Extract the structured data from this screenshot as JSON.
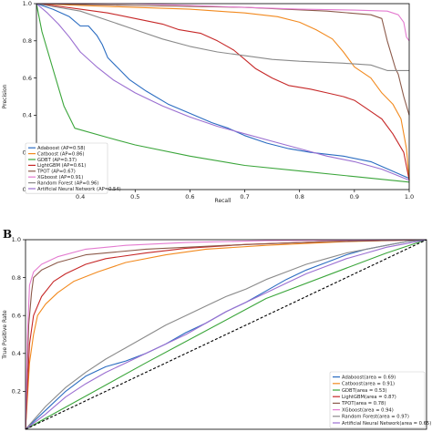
{
  "panel_letter_b": "B",
  "chart_data": [
    {
      "type": "line",
      "title": "",
      "xlabel": "Recall",
      "ylabel": "Precision",
      "xlim": [
        0.32,
        1.0
      ],
      "ylim": [
        0.0,
        1.0
      ],
      "xticks": [
        "0.4",
        "0.5",
        "0.6",
        "0.7",
        "0.8",
        "0.9",
        "1.0"
      ],
      "yticks": [
        "0.0",
        "0.2",
        "0.4",
        "0.6",
        "0.8",
        "1.0"
      ],
      "grid": false,
      "legend_position": "lower-left",
      "series": [
        {
          "name": "Adaboost (AP=0.58)",
          "color": "#2a6cc1",
          "points": [
            [
              0.32,
              1.0
            ],
            [
              0.35,
              0.97
            ],
            [
              0.38,
              0.93
            ],
            [
              0.4,
              0.88
            ],
            [
              0.415,
              0.88
            ],
            [
              0.43,
              0.83
            ],
            [
              0.44,
              0.78
            ],
            [
              0.45,
              0.71
            ],
            [
              0.47,
              0.65
            ],
            [
              0.49,
              0.59
            ],
            [
              0.52,
              0.53
            ],
            [
              0.56,
              0.46
            ],
            [
              0.6,
              0.41
            ],
            [
              0.64,
              0.36
            ],
            [
              0.67,
              0.33
            ],
            [
              0.7,
              0.29
            ],
            [
              0.74,
              0.25
            ],
            [
              0.78,
              0.22
            ],
            [
              0.82,
              0.2
            ],
            [
              0.88,
              0.18
            ],
            [
              0.93,
              0.15
            ],
            [
              1.0,
              0.06
            ]
          ]
        },
        {
          "name": "Catboost (AP=0.86)",
          "color": "#f28a1f",
          "points": [
            [
              0.32,
              1.0
            ],
            [
              0.4,
              0.99
            ],
            [
              0.5,
              0.98
            ],
            [
              0.6,
              0.97
            ],
            [
              0.7,
              0.95
            ],
            [
              0.76,
              0.93
            ],
            [
              0.8,
              0.9
            ],
            [
              0.83,
              0.86
            ],
            [
              0.86,
              0.81
            ],
            [
              0.88,
              0.74
            ],
            [
              0.9,
              0.66
            ],
            [
              0.93,
              0.6
            ],
            [
              0.95,
              0.52
            ],
            [
              0.97,
              0.46
            ],
            [
              0.985,
              0.38
            ],
            [
              0.995,
              0.22
            ],
            [
              1.0,
              0.05
            ]
          ]
        },
        {
          "name": "GDBT (AP=0.37)",
          "color": "#3aa53a",
          "points": [
            [
              0.32,
              1.0
            ],
            [
              0.33,
              0.85
            ],
            [
              0.35,
              0.65
            ],
            [
              0.37,
              0.45
            ],
            [
              0.39,
              0.33
            ],
            [
              0.45,
              0.28
            ],
            [
              0.5,
              0.24
            ],
            [
              0.6,
              0.18
            ],
            [
              0.7,
              0.13
            ],
            [
              0.8,
              0.1
            ],
            [
              0.9,
              0.07
            ],
            [
              1.0,
              0.04
            ]
          ]
        },
        {
          "name": "LightGBM (AP=0.61)",
          "color": "#c62828",
          "points": [
            [
              0.32,
              1.0
            ],
            [
              0.35,
              0.99
            ],
            [
              0.4,
              0.97
            ],
            [
              0.45,
              0.95
            ],
            [
              0.5,
              0.92
            ],
            [
              0.55,
              0.89
            ],
            [
              0.58,
              0.86
            ],
            [
              0.62,
              0.84
            ],
            [
              0.65,
              0.8
            ],
            [
              0.68,
              0.75
            ],
            [
              0.7,
              0.7
            ],
            [
              0.72,
              0.65
            ],
            [
              0.75,
              0.6
            ],
            [
              0.78,
              0.56
            ],
            [
              0.82,
              0.54
            ],
            [
              0.85,
              0.52
            ],
            [
              0.88,
              0.5
            ],
            [
              0.9,
              0.48
            ],
            [
              0.92,
              0.44
            ],
            [
              0.95,
              0.38
            ],
            [
              0.97,
              0.3
            ],
            [
              0.99,
              0.2
            ],
            [
              1.0,
              0.05
            ]
          ]
        },
        {
          "name": "TPOT (AP=0.67)",
          "color": "#8c5a4a",
          "points": [
            [
              0.32,
              1.0
            ],
            [
              0.5,
              0.99
            ],
            [
              0.7,
              0.98
            ],
            [
              0.85,
              0.96
            ],
            [
              0.93,
              0.94
            ],
            [
              0.95,
              0.92
            ],
            [
              0.96,
              0.8
            ],
            [
              0.975,
              0.65
            ],
            [
              0.98,
              0.62
            ],
            [
              0.99,
              0.5
            ],
            [
              1.0,
              0.4
            ]
          ]
        },
        {
          "name": "XGboost (AP=0.91)",
          "color": "#e47bd0",
          "points": [
            [
              0.32,
              1.0
            ],
            [
              0.5,
              1.0
            ],
            [
              0.6,
              0.99
            ],
            [
              0.7,
              0.98
            ],
            [
              0.8,
              0.97
            ],
            [
              0.9,
              0.965
            ],
            [
              0.96,
              0.96
            ],
            [
              0.98,
              0.94
            ],
            [
              0.99,
              0.9
            ],
            [
              0.995,
              0.82
            ],
            [
              1.0,
              0.8
            ]
          ]
        },
        {
          "name": "Random Forest (AP=0.96)",
          "color": "#8a8a8a",
          "points": [
            [
              0.32,
              1.0
            ],
            [
              0.4,
              0.96
            ],
            [
              0.45,
              0.91
            ],
            [
              0.5,
              0.86
            ],
            [
              0.55,
              0.81
            ],
            [
              0.6,
              0.77
            ],
            [
              0.65,
              0.74
            ],
            [
              0.7,
              0.72
            ],
            [
              0.75,
              0.7
            ],
            [
              0.8,
              0.69
            ],
            [
              0.88,
              0.68
            ],
            [
              0.93,
              0.67
            ],
            [
              0.96,
              0.64
            ],
            [
              1.0,
              0.64
            ]
          ]
        },
        {
          "name": "Artificial Neural Network (AP=0.54)",
          "color": "#9b6fd1",
          "points": [
            [
              0.32,
              1.0
            ],
            [
              0.34,
              0.95
            ],
            [
              0.36,
              0.89
            ],
            [
              0.38,
              0.82
            ],
            [
              0.4,
              0.74
            ],
            [
              0.43,
              0.66
            ],
            [
              0.46,
              0.59
            ],
            [
              0.5,
              0.52
            ],
            [
              0.55,
              0.45
            ],
            [
              0.6,
              0.39
            ],
            [
              0.65,
              0.34
            ],
            [
              0.7,
              0.3
            ],
            [
              0.75,
              0.26
            ],
            [
              0.8,
              0.22
            ],
            [
              0.85,
              0.18
            ],
            [
              0.9,
              0.15
            ],
            [
              0.95,
              0.11
            ],
            [
              1.0,
              0.05
            ]
          ]
        }
      ]
    },
    {
      "type": "line",
      "title": "",
      "xlabel": "",
      "ylabel": "True Positive Rate",
      "xlim": [
        0.0,
        1.0
      ],
      "ylim": [
        0.0,
        1.0
      ],
      "yticks": [
        "0.2",
        "0.4",
        "0.6",
        "0.8",
        "1.0"
      ],
      "grid": false,
      "legend_position": "lower-right",
      "series": [
        {
          "name": "Adaboost(area = 0.69)",
          "color": "#2a6cc1",
          "points": [
            [
              0,
              0
            ],
            [
              0.05,
              0.1
            ],
            [
              0.1,
              0.2
            ],
            [
              0.15,
              0.28
            ],
            [
              0.2,
              0.33
            ],
            [
              0.25,
              0.36
            ],
            [
              0.3,
              0.4
            ],
            [
              0.35,
              0.45
            ],
            [
              0.4,
              0.51
            ],
            [
              0.45,
              0.56
            ],
            [
              0.5,
              0.62
            ],
            [
              0.55,
              0.67
            ],
            [
              0.6,
              0.73
            ],
            [
              0.65,
              0.79
            ],
            [
              0.7,
              0.84
            ],
            [
              0.75,
              0.88
            ],
            [
              0.8,
              0.92
            ],
            [
              0.85,
              0.95
            ],
            [
              0.9,
              0.97
            ],
            [
              0.95,
              0.99
            ],
            [
              1.0,
              1.0
            ]
          ]
        },
        {
          "name": "Catboost(area = 0.91)",
          "color": "#f28a1f",
          "points": [
            [
              0,
              0
            ],
            [
              0.01,
              0.35
            ],
            [
              0.02,
              0.5
            ],
            [
              0.03,
              0.6
            ],
            [
              0.05,
              0.66
            ],
            [
              0.08,
              0.72
            ],
            [
              0.12,
              0.78
            ],
            [
              0.18,
              0.83
            ],
            [
              0.25,
              0.88
            ],
            [
              0.35,
              0.92
            ],
            [
              0.45,
              0.95
            ],
            [
              0.6,
              0.97
            ],
            [
              0.8,
              0.99
            ],
            [
              1.0,
              1.0
            ]
          ]
        },
        {
          "name": "GDBT(area = 0.53)",
          "color": "#3aa53a",
          "points": [
            [
              0,
              0
            ],
            [
              0.3,
              0.35
            ],
            [
              0.6,
              0.69
            ],
            [
              0.8,
              0.85
            ],
            [
              0.9,
              0.93
            ],
            [
              1.0,
              1.0
            ]
          ]
        },
        {
          "name": "LightGBM(area = 0.87)",
          "color": "#c62828",
          "points": [
            [
              0,
              0
            ],
            [
              0.01,
              0.45
            ],
            [
              0.02,
              0.6
            ],
            [
              0.04,
              0.7
            ],
            [
              0.07,
              0.78
            ],
            [
              0.1,
              0.82
            ],
            [
              0.15,
              0.87
            ],
            [
              0.2,
              0.9
            ],
            [
              0.3,
              0.93
            ],
            [
              0.4,
              0.955
            ],
            [
              0.55,
              0.975
            ],
            [
              0.75,
              0.99
            ],
            [
              1.0,
              1.0
            ]
          ]
        },
        {
          "name": "TPOT(area = 0.78)",
          "color": "#8c5a4a",
          "points": [
            [
              0,
              0
            ],
            [
              0.008,
              0.55
            ],
            [
              0.015,
              0.72
            ],
            [
              0.02,
              0.8
            ],
            [
              0.04,
              0.84
            ],
            [
              0.08,
              0.88
            ],
            [
              0.15,
              0.92
            ],
            [
              0.3,
              0.95
            ],
            [
              0.5,
              0.97
            ],
            [
              0.75,
              0.99
            ],
            [
              1.0,
              1.0
            ]
          ]
        },
        {
          "name": "XGboost(area = 0.94)",
          "color": "#e47bd0",
          "points": [
            [
              0,
              0
            ],
            [
              0.005,
              0.5
            ],
            [
              0.01,
              0.76
            ],
            [
              0.02,
              0.83
            ],
            [
              0.04,
              0.87
            ],
            [
              0.08,
              0.91
            ],
            [
              0.15,
              0.95
            ],
            [
              0.25,
              0.97
            ],
            [
              0.4,
              0.985
            ],
            [
              0.6,
              0.995
            ],
            [
              1.0,
              1.0
            ]
          ]
        },
        {
          "name": "Random Forest(area = 0.97)",
          "color": "#8a8a8a",
          "points": [
            [
              0,
              0
            ],
            [
              0.05,
              0.12
            ],
            [
              0.1,
              0.22
            ],
            [
              0.15,
              0.3
            ],
            [
              0.2,
              0.37
            ],
            [
              0.25,
              0.43
            ],
            [
              0.3,
              0.49
            ],
            [
              0.35,
              0.55
            ],
            [
              0.4,
              0.6
            ],
            [
              0.45,
              0.65
            ],
            [
              0.5,
              0.7
            ],
            [
              0.55,
              0.74
            ],
            [
              0.6,
              0.79
            ],
            [
              0.65,
              0.83
            ],
            [
              0.7,
              0.87
            ],
            [
              0.75,
              0.9
            ],
            [
              0.8,
              0.93
            ],
            [
              0.85,
              0.95
            ],
            [
              0.9,
              0.97
            ],
            [
              0.95,
              0.99
            ],
            [
              1.0,
              1.0
            ]
          ]
        },
        {
          "name": "Artificial Neural Network(area = 0.65)",
          "color": "#9b6fd1",
          "points": [
            [
              0,
              0
            ],
            [
              0.05,
              0.08
            ],
            [
              0.1,
              0.17
            ],
            [
              0.15,
              0.24
            ],
            [
              0.2,
              0.3
            ],
            [
              0.25,
              0.35
            ],
            [
              0.3,
              0.4
            ],
            [
              0.35,
              0.45
            ],
            [
              0.4,
              0.5
            ],
            [
              0.45,
              0.56
            ],
            [
              0.5,
              0.62
            ],
            [
              0.55,
              0.67
            ],
            [
              0.6,
              0.72
            ],
            [
              0.65,
              0.77
            ],
            [
              0.7,
              0.82
            ],
            [
              0.75,
              0.86
            ],
            [
              0.8,
              0.9
            ],
            [
              0.85,
              0.93
            ],
            [
              0.9,
              0.96
            ],
            [
              0.95,
              0.98
            ],
            [
              1.0,
              1.0
            ]
          ]
        },
        {
          "name": "",
          "color": "#000000",
          "dashed": true,
          "points": [
            [
              0,
              0
            ],
            [
              1,
              1
            ]
          ]
        }
      ]
    }
  ]
}
